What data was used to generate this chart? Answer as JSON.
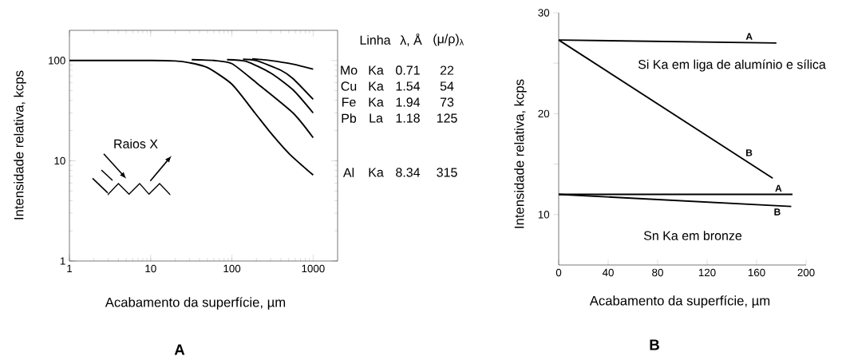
{
  "chart_data": [
    {
      "type": "line",
      "xlabel": "Acabamento da superfície, µm",
      "ylabel": "Intensidade relativa, kcps",
      "log": "xy",
      "xlim": [
        1,
        2000
      ],
      "ylim": [
        1,
        200
      ],
      "xticks": [
        1,
        10,
        100,
        1000
      ],
      "yticks": [
        1,
        10,
        100
      ],
      "series": [
        {
          "color": "#000000",
          "x": [
            178,
            300,
            565,
            1000
          ],
          "values": [
            104,
            100,
            92,
            82
          ]
        },
        {
          "color": "#000000",
          "x": [
            137,
            200,
            400,
            565,
            1000
          ],
          "values": [
            103,
            100,
            80,
            66,
            41
          ]
        },
        {
          "color": "#000000",
          "x": [
            87,
            150,
            300,
            565,
            1000
          ],
          "values": [
            102,
            98,
            75,
            51,
            30
          ]
        },
        {
          "color": "#000000",
          "x": [
            32,
            60,
            100,
            200,
            565,
            1000
          ],
          "values": [
            102,
            100,
            93,
            60,
            30,
            17
          ]
        },
        {
          "color": "#000000",
          "x": [
            1,
            10,
            20,
            30,
            50,
            100,
            192,
            300,
            510,
            1000
          ],
          "values": [
            100,
            100,
            99,
            95,
            85,
            58,
            30,
            19,
            11.7,
            7.2
          ]
        }
      ],
      "annotations": [
        "Raios X",
        "Linha",
        "λ, Å",
        "(μ/ρ)$_{λ}$",
        "Mo",
        "Ka",
        "0.71",
        "22",
        "Cu",
        "Ka",
        "1.54",
        "54",
        "Fe",
        "Ka",
        "1.94",
        "73",
        "Pb",
        "La",
        "1.18",
        "125",
        "Al",
        "Ka",
        "8.34",
        "315",
        "A"
      ]
    },
    {
      "type": "line",
      "xlabel": "Acabamento da superfície, µm",
      "ylabel": "Intensidade relativa, kcps",
      "xlim": [
        0,
        200
      ],
      "ylim": [
        5,
        30
      ],
      "xticks": [
        0,
        40,
        80,
        120,
        160,
        200
      ],
      "yticks": [
        10,
        {
          "value": 15,
          "label": null
        },
        20,
        {
          "value": 25,
          "label": null
        },
        30
      ],
      "series": [
        {
          "name": "A",
          "color": "#000000",
          "x": [
            0,
            176
          ],
          "values": [
            27.3,
            27.0
          ]
        },
        {
          "name": "B",
          "color": "#000000",
          "x": [
            0,
            173
          ],
          "values": [
            27.3,
            13.6
          ]
        },
        {
          "name": "A",
          "color": "#000000",
          "x": [
            0,
            189
          ],
          "values": [
            12.0,
            12.0
          ]
        },
        {
          "name": "B",
          "color": "#000000",
          "x": [
            0,
            188
          ],
          "values": [
            12.0,
            10.8
          ]
        }
      ],
      "annotations": [
        "Si Ka em liga de alumínio e sílica",
        "Sn Ka em bronze",
        "B"
      ]
    }
  ]
}
